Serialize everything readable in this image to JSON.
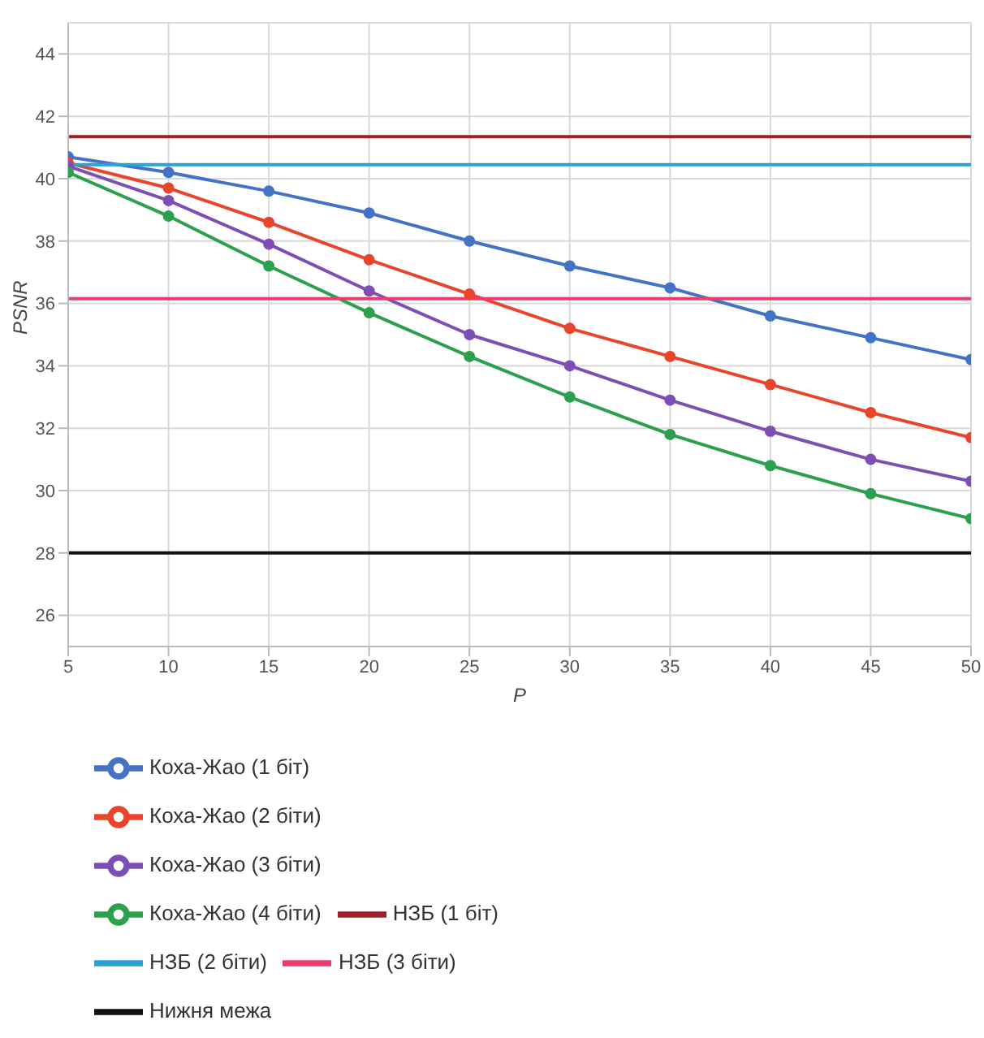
{
  "chart_data": {
    "type": "line",
    "xlabel": "P",
    "ylabel": "PSNR",
    "x": [
      5,
      10,
      15,
      20,
      25,
      30,
      35,
      40,
      45,
      50
    ],
    "xlim": [
      5,
      50
    ],
    "xticks": [
      5,
      10,
      15,
      20,
      25,
      30,
      35,
      40,
      45,
      50
    ],
    "ylim": [
      25,
      45
    ],
    "yticks": [
      26,
      28,
      30,
      32,
      34,
      36,
      38,
      40,
      42,
      44
    ],
    "grid": true,
    "legend": "bottom",
    "marker": "circle",
    "series": [
      {
        "name": "Коха-Жао (1 біт)",
        "color": "#4472c4",
        "values": [
          40.7,
          40.2,
          39.6,
          38.9,
          38.0,
          37.2,
          36.5,
          35.6,
          34.9,
          34.2
        ]
      },
      {
        "name": "Коха-Жао (2 біти)",
        "color": "#e8452c",
        "values": [
          40.5,
          39.7,
          38.6,
          37.4,
          36.3,
          35.2,
          34.3,
          33.4,
          32.5,
          31.7
        ]
      },
      {
        "name": "Коха-Жао (3 біти)",
        "color": "#7d4fb5",
        "values": [
          40.4,
          39.3,
          37.9,
          36.4,
          35.0,
          34.0,
          32.9,
          31.9,
          31.0,
          30.3
        ]
      },
      {
        "name": "Коха-Жао (4 біти)",
        "color": "#2ca04c",
        "values": [
          40.2,
          38.8,
          37.2,
          35.7,
          34.3,
          33.0,
          31.8,
          30.8,
          29.9,
          29.1
        ]
      },
      {
        "name": "НЗБ (1 біт)",
        "color": "#9b2226",
        "marker": "none",
        "values": [
          41.35,
          41.35,
          41.35,
          41.35,
          41.35,
          41.35,
          41.35,
          41.35,
          41.35,
          41.35
        ]
      },
      {
        "name": "НЗБ (2 біти)",
        "color": "#2aa1d3",
        "marker": "none",
        "values": [
          40.45,
          40.45,
          40.45,
          40.45,
          40.45,
          40.45,
          40.45,
          40.45,
          40.45,
          40.45
        ]
      },
      {
        "name": "НЗБ (3 біти)",
        "color": "#e83e6c",
        "marker": "none",
        "values": [
          36.15,
          36.15,
          36.15,
          36.15,
          36.15,
          36.15,
          36.15,
          36.15,
          36.15,
          36.15
        ]
      },
      {
        "name": "Нижня межа",
        "color": "#111111",
        "marker": "none",
        "values": [
          28,
          28,
          28,
          28,
          28,
          28,
          28,
          28,
          28,
          28
        ]
      }
    ]
  }
}
